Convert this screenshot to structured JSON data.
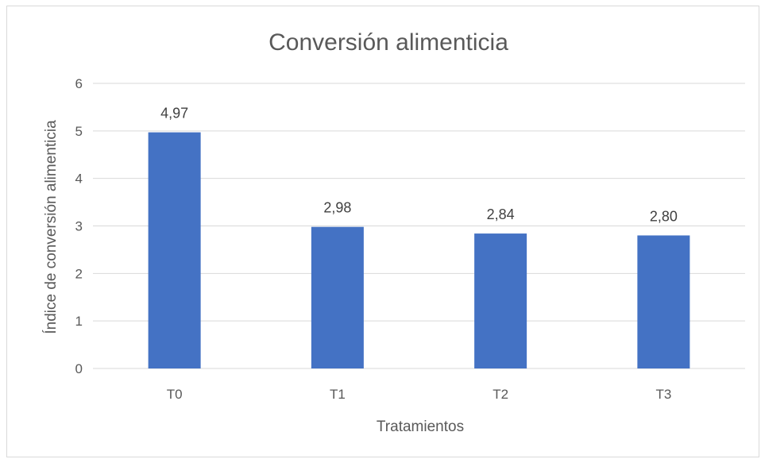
{
  "chart_data": {
    "type": "bar",
    "title": "Conversión alimenticia",
    "xlabel": "Tratamientos",
    "ylabel": "Índice de conversión alimenticia",
    "categories": [
      "T0",
      "T1",
      "T2",
      "T3"
    ],
    "values": [
      4.97,
      2.98,
      2.84,
      2.8
    ],
    "data_labels": [
      "4,97",
      "2,98",
      "2,84",
      "2,80"
    ],
    "yticks": [
      0,
      1,
      2,
      3,
      4,
      5,
      6
    ],
    "ylim": [
      0,
      6
    ],
    "grid": true,
    "legend": "none",
    "bar_color": "#4472C4",
    "grid_color": "#d9d9d9"
  }
}
